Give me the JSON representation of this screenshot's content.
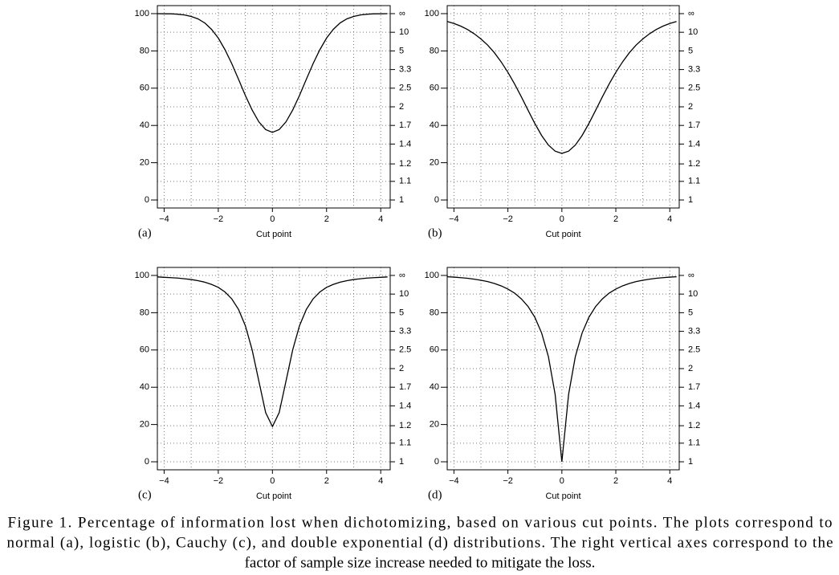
{
  "chart_data": [
    {
      "type": "line",
      "panel_label": "(a)",
      "xlabel": "Cut point",
      "color": "#000000",
      "x": [
        -4.25,
        -4,
        -3.75,
        -3.5,
        -3.25,
        -3,
        -2.75,
        -2.5,
        -2.25,
        -2,
        -1.75,
        -1.5,
        -1.25,
        -1,
        -0.75,
        -0.5,
        -0.25,
        0,
        0.25,
        0.5,
        0.75,
        1,
        1.25,
        1.5,
        1.75,
        2,
        2.25,
        2.5,
        2.75,
        3,
        3.25,
        3.5,
        3.75,
        4,
        4.25
      ],
      "values": [
        100.0,
        99.9,
        99.9,
        99.7,
        99.3,
        98.5,
        97.2,
        95.0,
        91.6,
        86.9,
        80.6,
        73.1,
        64.7,
        56.1,
        48.3,
        41.9,
        37.8,
        36.3,
        37.8,
        41.9,
        48.3,
        56.1,
        64.7,
        73.1,
        80.6,
        86.9,
        91.6,
        95.0,
        97.2,
        98.5,
        99.3,
        99.7,
        99.9,
        99.9,
        100.0
      ],
      "xlim": [
        -4.25,
        4.35
      ],
      "xticks": [
        {
          "value": -4,
          "label": "−4"
        },
        {
          "value": -2,
          "label": "−2"
        },
        0,
        2,
        4
      ],
      "xgrid": [
        -4,
        -3,
        -2,
        -1,
        0,
        1,
        2,
        3,
        4
      ],
      "ylim": [
        -4.3,
        104.3
      ],
      "yticks": [
        0,
        20,
        40,
        60,
        80,
        100
      ],
      "y2_scale": "reciprocal",
      "y2ticks": [
        1,
        {
          "value": 1.111,
          "label": "1.1"
        },
        {
          "value": 1.24,
          "label": "1.2"
        },
        {
          "value": 1.429,
          "label": "1.4"
        },
        {
          "value": 1.667,
          "label": "1.7"
        },
        2,
        2.5,
        {
          "value": 3.333,
          "label": "3.3"
        },
        5,
        10,
        {
          "value": null,
          "label": "∞"
        }
      ]
    },
    {
      "type": "line",
      "panel_label": "(b)",
      "xlabel": "Cut point",
      "color": "#000000",
      "x": [
        -4.25,
        -4,
        -3.75,
        -3.5,
        -3.25,
        -3,
        -2.75,
        -2.5,
        -2.25,
        -2,
        -1.75,
        -1.5,
        -1.25,
        -1,
        -0.75,
        -0.5,
        -0.25,
        0,
        0.25,
        0.5,
        0.75,
        1,
        1.25,
        1.5,
        1.75,
        2,
        2.25,
        2.5,
        2.75,
        3,
        3.25,
        3.5,
        3.75,
        4,
        4.25
      ],
      "values": [
        95.8,
        94.7,
        93.3,
        91.5,
        89.2,
        86.4,
        83.1,
        79.0,
        74.1,
        68.5,
        62.2,
        55.3,
        48.1,
        41.0,
        34.6,
        29.5,
        26.2,
        25.0,
        26.2,
        29.5,
        34.6,
        41.0,
        48.1,
        55.3,
        62.2,
        68.5,
        74.1,
        79.0,
        83.1,
        86.4,
        89.2,
        91.5,
        93.3,
        94.7,
        95.8
      ],
      "xlim": [
        -4.25,
        4.35
      ],
      "xticks": [
        {
          "value": -4,
          "label": "−4"
        },
        {
          "value": -2,
          "label": "−2"
        },
        0,
        2,
        4
      ],
      "xgrid": [
        -4,
        -3,
        -2,
        -1,
        0,
        1,
        2,
        3,
        4
      ],
      "ylim": [
        -4.3,
        104.3
      ],
      "yticks": [
        0,
        20,
        40,
        60,
        80,
        100
      ],
      "y2_scale": "reciprocal",
      "y2ticks": [
        1,
        {
          "value": 1.111,
          "label": "1.1"
        },
        {
          "value": 1.24,
          "label": "1.2"
        },
        {
          "value": 1.429,
          "label": "1.4"
        },
        {
          "value": 1.667,
          "label": "1.7"
        },
        2,
        2.5,
        {
          "value": 3.333,
          "label": "3.3"
        },
        5,
        10,
        {
          "value": null,
          "label": "∞"
        }
      ]
    },
    {
      "type": "line",
      "panel_label": "(c)",
      "xlabel": "Cut point",
      "color": "#000000",
      "x": [
        -4.25,
        -4,
        -3.75,
        -3.5,
        -3.25,
        -3,
        -2.75,
        -2.5,
        -2.25,
        -2,
        -1.75,
        -1.5,
        -1.25,
        -1,
        -0.75,
        -0.5,
        -0.25,
        0,
        0.25,
        0.5,
        0.75,
        1,
        1.25,
        1.5,
        1.75,
        2,
        2.25,
        2.5,
        2.75,
        3,
        3.25,
        3.5,
        3.75,
        4,
        4.25
      ],
      "values": [
        99.2,
        99.0,
        98.8,
        98.6,
        98.2,
        97.8,
        97.2,
        96.4,
        95.2,
        93.6,
        91.1,
        87.4,
        81.7,
        73.0,
        60.1,
        43.2,
        26.4,
        18.9,
        26.4,
        43.2,
        60.1,
        73.0,
        81.7,
        87.4,
        91.1,
        93.6,
        95.2,
        96.4,
        97.2,
        97.8,
        98.2,
        98.6,
        98.8,
        99.0,
        99.2
      ],
      "xlim": [
        -4.25,
        4.35
      ],
      "xticks": [
        {
          "value": -4,
          "label": "−4"
        },
        {
          "value": -2,
          "label": "−2"
        },
        0,
        2,
        4
      ],
      "xgrid": [
        -4,
        -3,
        -2,
        -1,
        0,
        1,
        2,
        3,
        4
      ],
      "ylim": [
        -4.3,
        104.3
      ],
      "yticks": [
        0,
        20,
        40,
        60,
        80,
        100
      ],
      "y2_scale": "reciprocal",
      "y2ticks": [
        1,
        {
          "value": 1.111,
          "label": "1.1"
        },
        {
          "value": 1.24,
          "label": "1.2"
        },
        {
          "value": 1.429,
          "label": "1.4"
        },
        {
          "value": 1.667,
          "label": "1.7"
        },
        2,
        2.5,
        {
          "value": 3.333,
          "label": "3.3"
        },
        5,
        10,
        {
          "value": null,
          "label": "∞"
        }
      ]
    },
    {
      "type": "line",
      "panel_label": "(d)",
      "xlabel": "Cut point",
      "color": "#000000",
      "x": [
        -4.25,
        -4,
        -3.75,
        -3.5,
        -3.25,
        -3,
        -2.75,
        -2.5,
        -2.25,
        -2,
        -1.75,
        -1.5,
        -1.25,
        -1,
        -0.75,
        -0.5,
        -0.25,
        0,
        0.25,
        0.5,
        0.75,
        1,
        1.25,
        1.5,
        1.75,
        2,
        2.25,
        2.5,
        2.75,
        3,
        3.25,
        3.5,
        3.75,
        4,
        4.25
      ],
      "values": [
        99.3,
        99.1,
        98.8,
        98.5,
        98.0,
        97.4,
        96.7,
        95.7,
        94.4,
        92.7,
        90.5,
        87.4,
        83.3,
        77.5,
        69.1,
        56.5,
        36.2,
        0,
        36.2,
        56.5,
        69.1,
        77.5,
        83.3,
        87.4,
        90.5,
        92.7,
        94.4,
        95.7,
        96.7,
        97.4,
        98.0,
        98.5,
        98.8,
        99.1,
        99.3
      ],
      "xlim": [
        -4.25,
        4.35
      ],
      "xticks": [
        {
          "value": -4,
          "label": "−4"
        },
        {
          "value": -2,
          "label": "−2"
        },
        0,
        2,
        4
      ],
      "xgrid": [
        -4,
        -3,
        -2,
        -1,
        0,
        1,
        2,
        3,
        4
      ],
      "ylim": [
        -4.3,
        104.3
      ],
      "yticks": [
        0,
        20,
        40,
        60,
        80,
        100
      ],
      "y2_scale": "reciprocal",
      "y2ticks": [
        1,
        {
          "value": 1.111,
          "label": "1.1"
        },
        {
          "value": 1.24,
          "label": "1.2"
        },
        {
          "value": 1.429,
          "label": "1.4"
        },
        {
          "value": 1.667,
          "label": "1.7"
        },
        2,
        2.5,
        {
          "value": 3.333,
          "label": "3.3"
        },
        5,
        10,
        {
          "value": null,
          "label": "∞"
        }
      ]
    }
  ],
  "caption": {
    "lines": [
      "Figure 1.  Percentage of information lost when dichotomizing, based on various cut points. The plots correspond to",
      "normal (a), logistic (b), Cauchy (c), and double exponential (d) distributions. The right vertical axes correspond to the",
      "factor of sample size increase needed to mitigate the loss."
    ]
  }
}
